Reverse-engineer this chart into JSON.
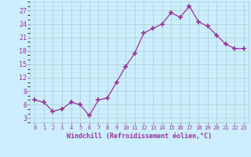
{
  "x": [
    0,
    1,
    2,
    3,
    4,
    5,
    6,
    7,
    8,
    9,
    10,
    11,
    12,
    13,
    14,
    15,
    16,
    17,
    18,
    19,
    20,
    21,
    22,
    23
  ],
  "y": [
    7.0,
    6.5,
    4.5,
    5.0,
    6.5,
    6.0,
    3.5,
    7.0,
    7.5,
    11.0,
    14.5,
    17.5,
    22.0,
    23.0,
    24.0,
    26.5,
    25.5,
    28.0,
    24.5,
    23.5,
    21.5,
    19.5,
    18.5,
    18.5
  ],
  "line_color": "#993399",
  "marker": "+",
  "bg_color": "#cceeff",
  "grid_color": "#aacccc",
  "tick_color": "#993399",
  "xlabel": "Windchill (Refroidissement éolien,°C)",
  "xlabel_color": "#993399",
  "yticks": [
    3,
    6,
    9,
    12,
    15,
    18,
    21,
    24,
    27
  ],
  "xticks": [
    0,
    1,
    2,
    3,
    4,
    5,
    6,
    7,
    8,
    9,
    10,
    11,
    12,
    13,
    14,
    15,
    16,
    17,
    18,
    19,
    20,
    21,
    22,
    23
  ],
  "ylim": [
    2.0,
    29.0
  ],
  "xlim": [
    -0.5,
    23.5
  ]
}
